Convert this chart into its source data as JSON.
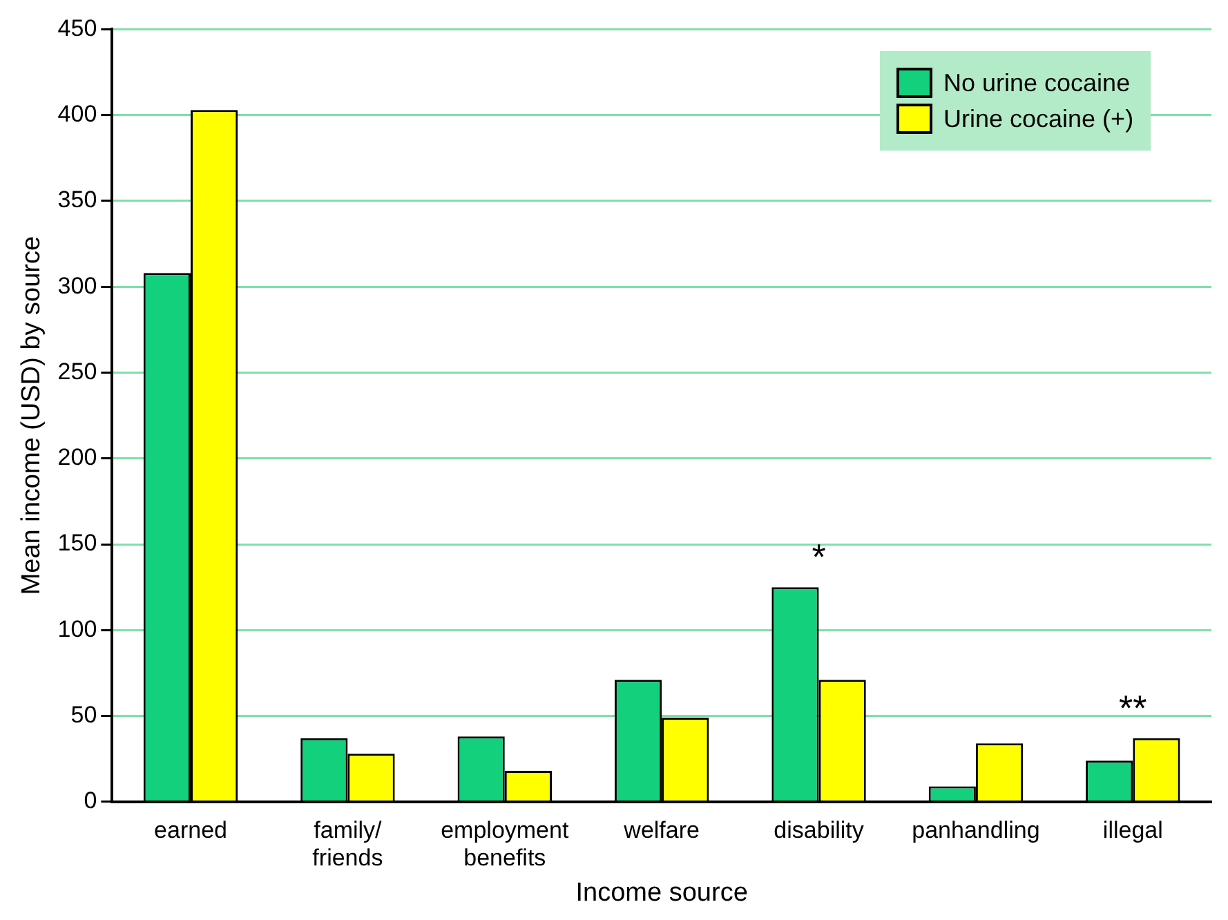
{
  "chart_data": {
    "type": "bar",
    "xlabel": "Income source",
    "ylabel": "Mean income (USD) by source",
    "categories": [
      "earned",
      "family/\nfriends",
      "employment\nbenefits",
      "welfare",
      "disability",
      "panhandling",
      "illegal"
    ],
    "series": [
      {
        "name": "No urine cocaine",
        "color": "#13d07c",
        "values": [
          308,
          37,
          38,
          71,
          125,
          9,
          24
        ]
      },
      {
        "name": "Urine cocaine (+)",
        "color": "#ffff00",
        "values": [
          403,
          28,
          18,
          49,
          71,
          34,
          37
        ]
      }
    ],
    "ylim": [
      0,
      450
    ],
    "yticks": [
      0,
      50,
      100,
      150,
      200,
      250,
      300,
      350,
      400,
      450
    ],
    "grid": "y",
    "legend": "top right",
    "annotations": [
      {
        "text": "*",
        "x": "disability",
        "y": 125
      },
      {
        "text": "**",
        "x": "illegal",
        "y": 37
      }
    ]
  }
}
